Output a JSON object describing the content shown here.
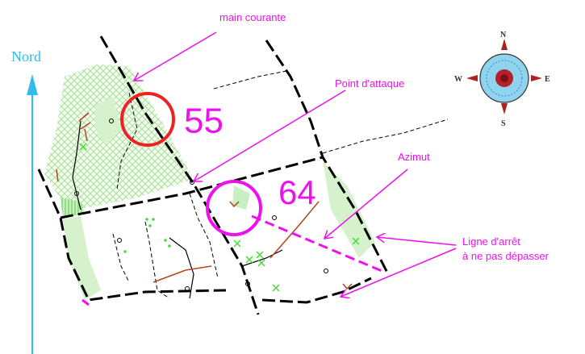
{
  "north": "Nord",
  "annotations": {
    "main_courante": "main courante",
    "point_attaque": "Point d'attaque",
    "azimut": "Azimut",
    "ligne_arret": [
      "Ligne d'arrêt",
      "à ne pas dépasser"
    ]
  },
  "controls": [
    "55",
    "64"
  ],
  "compass": {
    "n": "N",
    "w": "W",
    "e": "E",
    "s": "S"
  }
}
